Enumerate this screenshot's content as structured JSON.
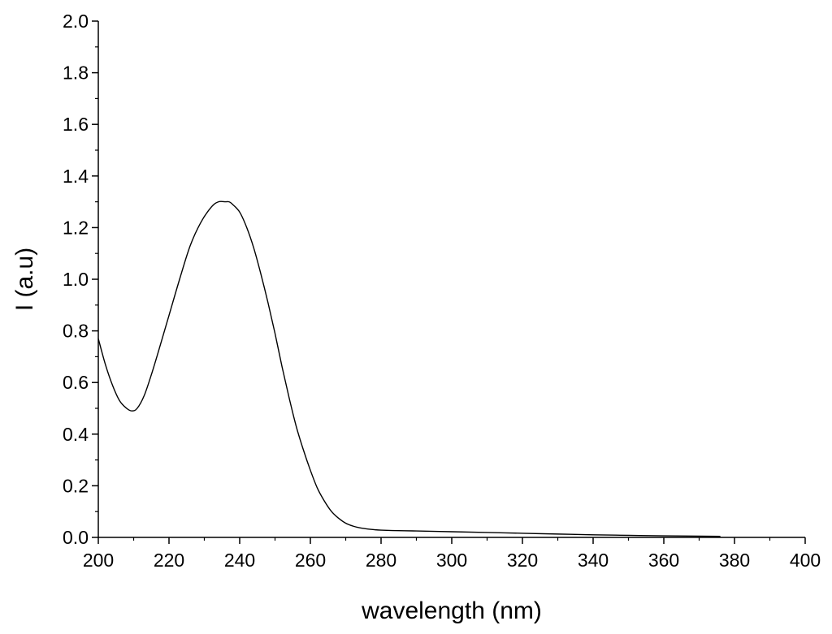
{
  "chart_data": {
    "type": "line",
    "title": "",
    "xlabel": "wavelength (nm)",
    "ylabel": "I (a.u)",
    "xlim": [
      200,
      400
    ],
    "ylim": [
      0,
      2.0
    ],
    "xticks": [
      "200",
      "220",
      "240",
      "260",
      "280",
      "300",
      "320",
      "340",
      "360",
      "380",
      "400"
    ],
    "yticks": [
      "0.0",
      "0.2",
      "0.4",
      "0.6",
      "0.8",
      "1.0",
      "1.2",
      "1.4",
      "1.6",
      "1.8",
      "2.0"
    ],
    "grid": false,
    "legend": false,
    "line_color": "#000000",
    "series": [
      {
        "x": [
          200,
          202,
          204,
          206,
          208,
          209.5,
          211,
          213,
          215,
          217,
          220,
          223,
          226,
          229,
          232,
          234,
          236,
          237,
          238,
          240,
          242,
          244,
          246,
          248,
          250,
          252,
          254,
          256,
          258,
          260,
          262,
          264,
          266,
          268,
          270,
          272,
          274,
          276,
          278,
          280,
          285,
          290,
          300,
          310,
          320,
          330,
          340,
          350,
          360,
          370,
          376
        ],
        "y": [
          0.77,
          0.67,
          0.59,
          0.53,
          0.5,
          0.49,
          0.5,
          0.55,
          0.63,
          0.72,
          0.86,
          1.0,
          1.13,
          1.22,
          1.28,
          1.3,
          1.3,
          1.3,
          1.29,
          1.26,
          1.2,
          1.12,
          1.02,
          0.91,
          0.79,
          0.66,
          0.54,
          0.43,
          0.34,
          0.26,
          0.19,
          0.14,
          0.1,
          0.074,
          0.055,
          0.044,
          0.037,
          0.033,
          0.03,
          0.028,
          0.026,
          0.025,
          0.022,
          0.019,
          0.016,
          0.013,
          0.01,
          0.008,
          0.006,
          0.005,
          0.004
        ]
      }
    ]
  }
}
